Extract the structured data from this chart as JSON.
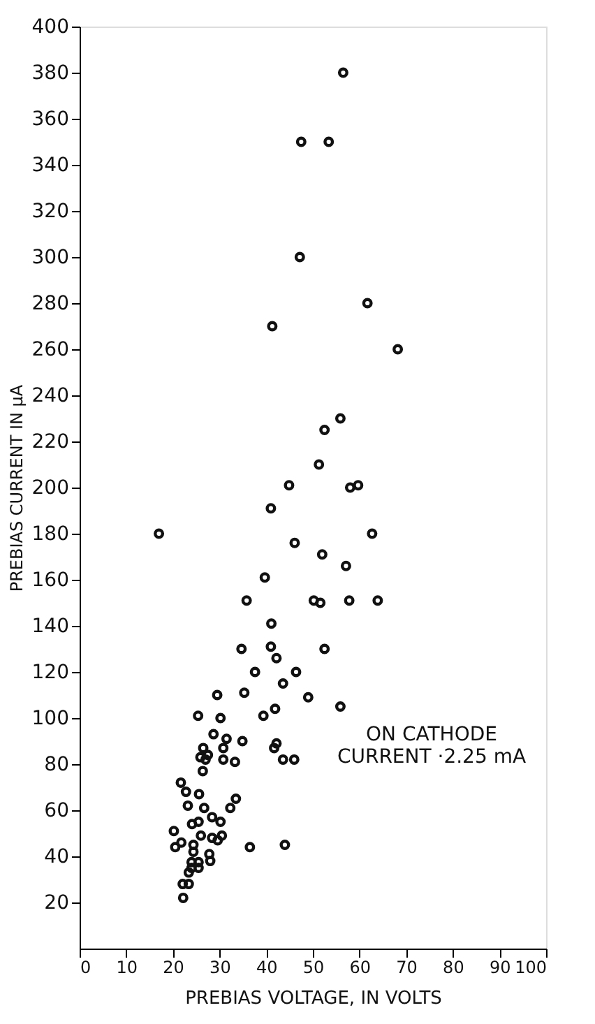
{
  "chart_data": {
    "type": "scatter",
    "xlabel": "PREBIAS VOLTAGE, IN VOLTS",
    "ylabel": "PREBIAS CURRENT IN μA",
    "annotations": [
      "ON CATHODE\nCURRENT ·2.25 mA"
    ],
    "xlim": [
      0,
      100
    ],
    "xticks": [
      0,
      10,
      20,
      30,
      40,
      50,
      60,
      70,
      80,
      90,
      100
    ],
    "ylim": [
      0,
      400
    ],
    "yticks": [
      20,
      40,
      60,
      80,
      100,
      120,
      140,
      160,
      180,
      200,
      220,
      240,
      260,
      280,
      300,
      320,
      340,
      360,
      380,
      400
    ],
    "grid": false,
    "marker": "circle",
    "series": [
      {
        "color": "#111111",
        "x": [
          56.5,
          47.5,
          53.4,
          47.2,
          61.7,
          41.3,
          68.2,
          55.9,
          52.5,
          51.3,
          44.9,
          58.0,
          59.7,
          41.0,
          17.0,
          62.7,
          46.1,
          52.0,
          57.1,
          39.7,
          35.8,
          50.2,
          51.6,
          57.8,
          63.9,
          41.1,
          34.7,
          41.0,
          42.2,
          52.5,
          37.6,
          46.4,
          43.6,
          29.5,
          35.3,
          49.0,
          55.9,
          41.9,
          39.4,
          25.4,
          30.2,
          28.7,
          31.5,
          34.9,
          26.5,
          30.8,
          42.2,
          41.7,
          27.5,
          25.9,
          27.0,
          26.4,
          30.8,
          33.3,
          43.6,
          46.0,
          21.7,
          22.8,
          25.6,
          23.2,
          26.7,
          33.5,
          32.3,
          24.1,
          25.5,
          28.4,
          30.2,
          20.2,
          26.0,
          28.4,
          29.6,
          30.5,
          20.5,
          21.8,
          24.4,
          24.4,
          27.8,
          28.0,
          36.5,
          44.0,
          24.0,
          25.5,
          24.0,
          25.5,
          23.4,
          22.1,
          23.4,
          22.2
        ],
        "values": [
          380,
          350,
          350,
          300,
          280,
          270,
          260,
          230,
          225,
          210,
          201,
          200,
          201,
          191,
          180,
          180,
          176,
          171,
          166,
          161,
          151,
          151,
          150,
          151,
          151,
          141,
          130,
          131,
          126,
          130,
          120,
          120,
          115,
          110,
          111,
          109,
          105,
          104,
          101,
          101,
          100,
          93,
          91,
          90,
          87,
          87,
          89,
          87,
          84,
          83,
          82,
          77,
          82,
          81,
          82,
          82,
          72,
          68,
          67,
          62,
          61,
          65,
          61,
          54,
          55,
          57,
          55,
          51,
          49,
          48,
          47,
          49,
          44,
          46,
          45,
          42,
          41,
          38,
          44,
          45,
          37.5,
          37.5,
          35,
          35,
          33,
          28,
          28,
          22
        ]
      }
    ]
  }
}
